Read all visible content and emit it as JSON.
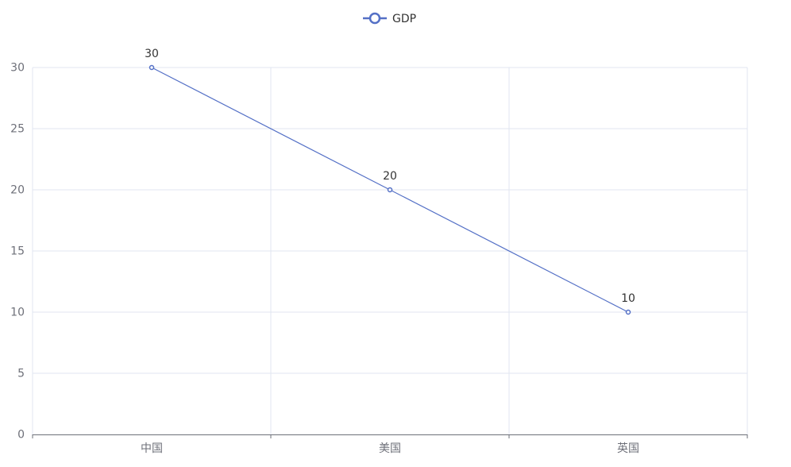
{
  "chart_data": {
    "type": "line",
    "title": "",
    "xlabel": "",
    "ylabel": "",
    "categories": [
      "中国",
      "美国",
      "英国"
    ],
    "series": [
      {
        "name": "GDP",
        "values": [
          30,
          20,
          10
        ],
        "color": "#5470c6"
      }
    ],
    "ylim": [
      0,
      30
    ],
    "yticks": [
      0,
      5,
      10,
      15,
      20,
      25,
      30
    ],
    "grid": true,
    "legend": "top-center",
    "colors": {
      "grid": "#e0e6f1",
      "axis": "#6e7079",
      "tick_label": "#6e7079",
      "data_label": "#333333",
      "legend_text": "#333333"
    }
  }
}
